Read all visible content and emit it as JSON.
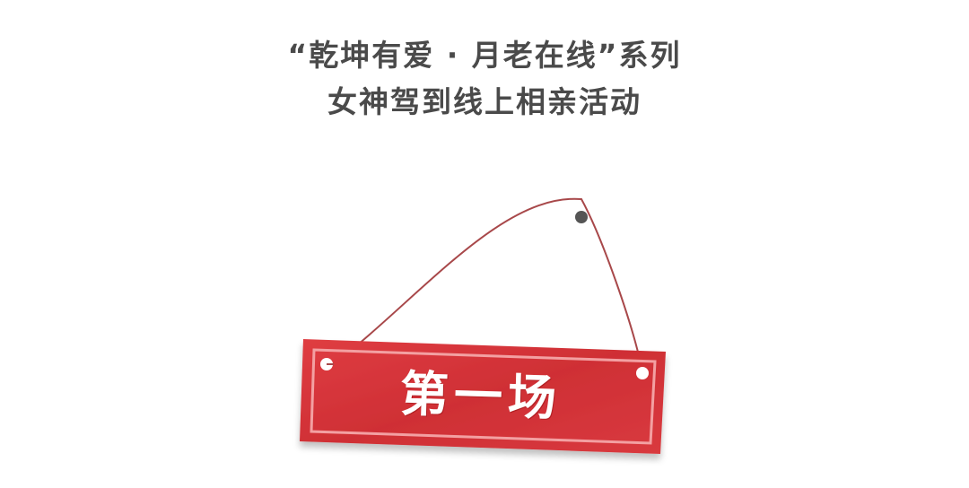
{
  "title": {
    "line1": "“乾坤有爱 · 月老在线”系列",
    "line2": "女神驾到线上相亲活动"
  },
  "sign": {
    "label": "第一场"
  },
  "colors": {
    "title_text": "#4a4a4a",
    "sign_red": "#d7363b",
    "sign_border": "#f3a0a2",
    "string": "#a8484a",
    "nail": "#555555",
    "sign_text": "#ffffff"
  },
  "icons": {
    "nail": "nail-icon",
    "hole": "hole-icon"
  }
}
